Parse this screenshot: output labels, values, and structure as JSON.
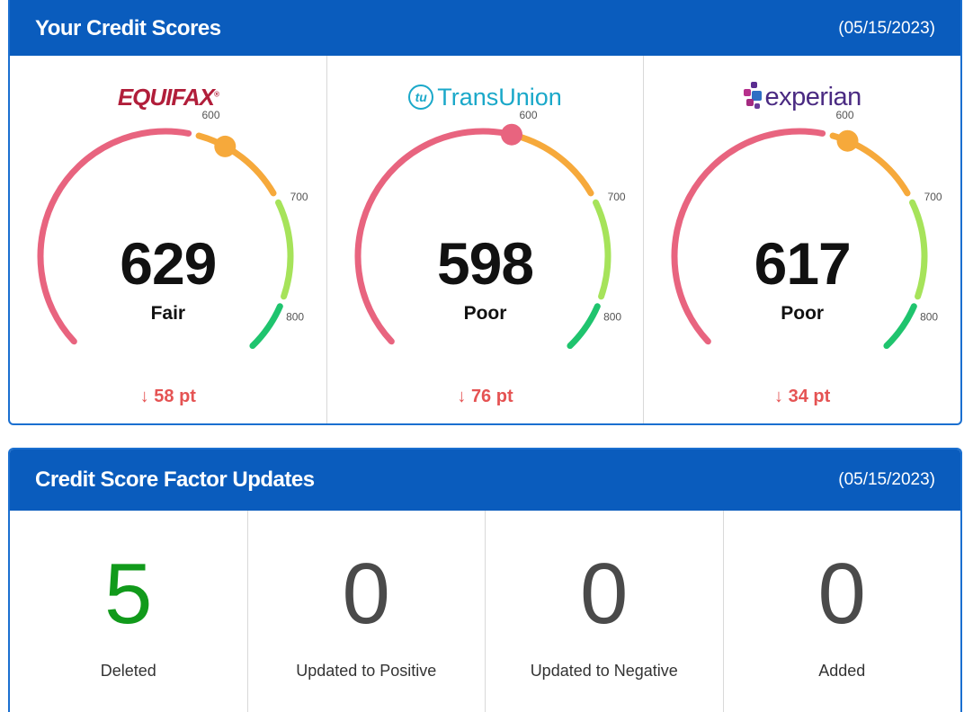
{
  "scores_panel": {
    "title": "Your Credit Scores",
    "date": "(05/15/2023)"
  },
  "bureaus": [
    {
      "name": "EQUIFAX",
      "score": "629",
      "rating": "Fair",
      "change": "58 pt",
      "change_direction": "down",
      "gauge_value": 629
    },
    {
      "name": "TransUnion",
      "logo_mark": "tu",
      "score": "598",
      "rating": "Poor",
      "change": "76 pt",
      "change_direction": "down",
      "gauge_value": 598
    },
    {
      "name": "experian",
      "score": "617",
      "rating": "Poor",
      "change": "34 pt",
      "change_direction": "down",
      "gauge_value": 617
    }
  ],
  "gauge_ticks": [
    "600",
    "700",
    "800"
  ],
  "gauge_colors": {
    "poor": "#e8647f",
    "fair": "#f6a93b",
    "good": "#a6e35a",
    "excellent": "#1fc46e"
  },
  "change_arrow": "↓",
  "factors_panel": {
    "title": "Credit Score Factor Updates",
    "date": "(05/15/2023)"
  },
  "factors": [
    {
      "count": "5",
      "label": "Deleted",
      "color": "#119a1b"
    },
    {
      "count": "0",
      "label": "Updated to Positive",
      "color": "#4a4a4a"
    },
    {
      "count": "0",
      "label": "Updated to Negative",
      "color": "#4a4a4a"
    },
    {
      "count": "0",
      "label": "Added",
      "color": "#4a4a4a"
    }
  ]
}
